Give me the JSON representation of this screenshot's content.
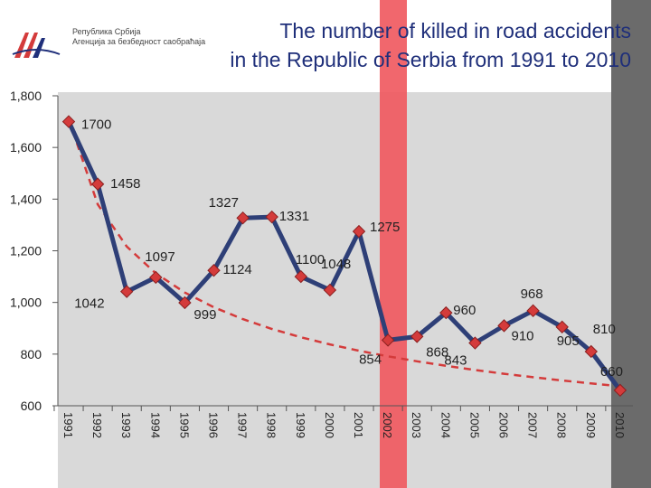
{
  "title_line1": "The number of killed in road accidents",
  "title_line2": "in the Republic of Serbia from 1991 to 2010",
  "agency_line1": "Република Србија",
  "agency_line2": "Агенција за безбедност саобраћаја",
  "colors": {
    "title": "#1f2f7a",
    "line": "#2e3f77",
    "marker": "#d43b3b",
    "trend": "#d43b3b",
    "highlight_band": "#f0575d",
    "dark_band": "#6b6b6b"
  },
  "chart_data": {
    "type": "line",
    "title": "The number of killed in road accidents in the Republic of Serbia from 1991 to 2010",
    "xlabel": "",
    "ylabel": "",
    "categories": [
      "1991",
      "1992",
      "1993",
      "1994",
      "1995",
      "1996",
      "1997",
      "1998",
      "1999",
      "2000",
      "2001",
      "2002",
      "2003",
      "2004",
      "2005",
      "2006",
      "2007",
      "2008",
      "2009",
      "2010"
    ],
    "series": [
      {
        "values": [
          1700,
          1458,
          1042,
          1097,
          999,
          1124,
          1327,
          1331,
          1100,
          1048,
          1275,
          854,
          868,
          960,
          843,
          910,
          968,
          905,
          810,
          660
        ]
      }
    ],
    "data_labels": [
      "1700",
      "1458",
      "1042",
      "1097",
      "999",
      "1124",
      "1327",
      "1331",
      "1100",
      "1048",
      "1275",
      "854",
      "868",
      "960",
      "843",
      "910",
      "968",
      "905",
      "810",
      "660"
    ],
    "trendline": "dashed decreasing curve",
    "ylim": [
      600,
      1800
    ],
    "yticks": [
      "600",
      "800",
      "1,000",
      "1,200",
      "1,400",
      "1,600",
      "1,800"
    ],
    "grid": false,
    "highlighted_categories": [
      "2002",
      "2010"
    ]
  }
}
